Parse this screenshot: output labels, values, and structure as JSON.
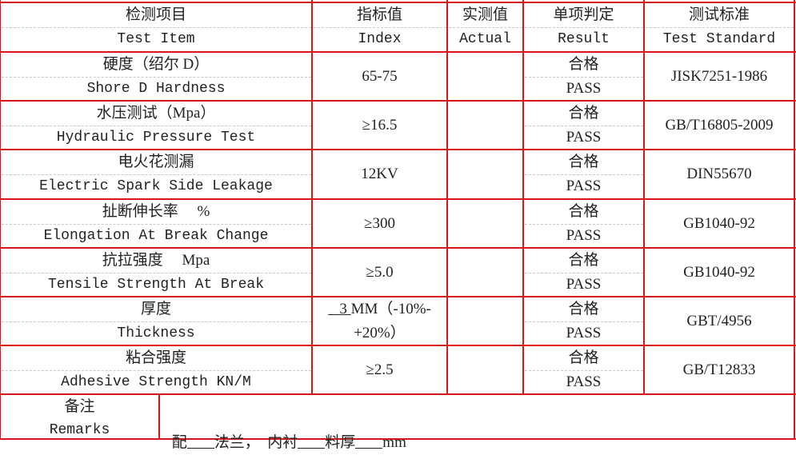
{
  "header": {
    "item_cn": "检测项目",
    "item_en": "Test Item",
    "index_cn": "指标值",
    "index_en": "Index",
    "actual_cn": "实测值",
    "actual_en": "Actual",
    "result_cn": "单项判定",
    "result_en": "Result",
    "standard_cn": "测试标准",
    "standard_en": "Test Standard"
  },
  "rows": [
    {
      "item_cn": "硬度（绍尔 D）",
      "item_en": "Shore D Hardness",
      "index": "65-75",
      "actual": "",
      "result_cn": "合格",
      "result_en": "PASS",
      "standard": "JISK7251-1986"
    },
    {
      "item_cn": "水压测试（Mpa）",
      "item_en": "Hydraulic Pressure Test",
      "index": "≥16.5",
      "actual": "",
      "result_cn": "合格",
      "result_en": "PASS",
      "standard": "GB/T16805-2009"
    },
    {
      "item_cn": "电火花测漏",
      "item_en": "Electric Spark Side Leakage",
      "index": "12KV",
      "actual": "",
      "result_cn": "合格",
      "result_en": "PASS",
      "standard": "DIN55670"
    },
    {
      "item_cn": "扯断伸长率     %",
      "item_en": "Elongation At Break Change",
      "index": "≥300",
      "actual": "",
      "result_cn": "合格",
      "result_en": "PASS",
      "standard": "GB1040-92"
    },
    {
      "item_cn": "抗拉强度     Mpa",
      "item_en": "Tensile Strength At Break",
      "index": "≥5.0",
      "actual": "",
      "result_cn": "合格",
      "result_en": "PASS",
      "standard": "GB1040-92"
    },
    {
      "item_cn": "厚度",
      "item_en": "Thickness",
      "index": "   3 MM（-10%-\n+20%）",
      "actual": "",
      "result_cn": "合格",
      "result_en": "PASS",
      "standard": "GBT/4956"
    },
    {
      "item_cn": "粘合强度",
      "item_en": "Adhesive Strength KN/M",
      "index": "≥2.5",
      "actual": "",
      "result_cn": "合格",
      "result_en": "PASS",
      "standard": "GB/T12833"
    }
  ],
  "remarks": {
    "label_cn": "备注",
    "label_en": "Remarks",
    "part1": "配",
    "part2": "法兰，  内衬",
    "part3": "料厚",
    "part4": "mm"
  },
  "colors": {
    "border": "#d9141b"
  }
}
